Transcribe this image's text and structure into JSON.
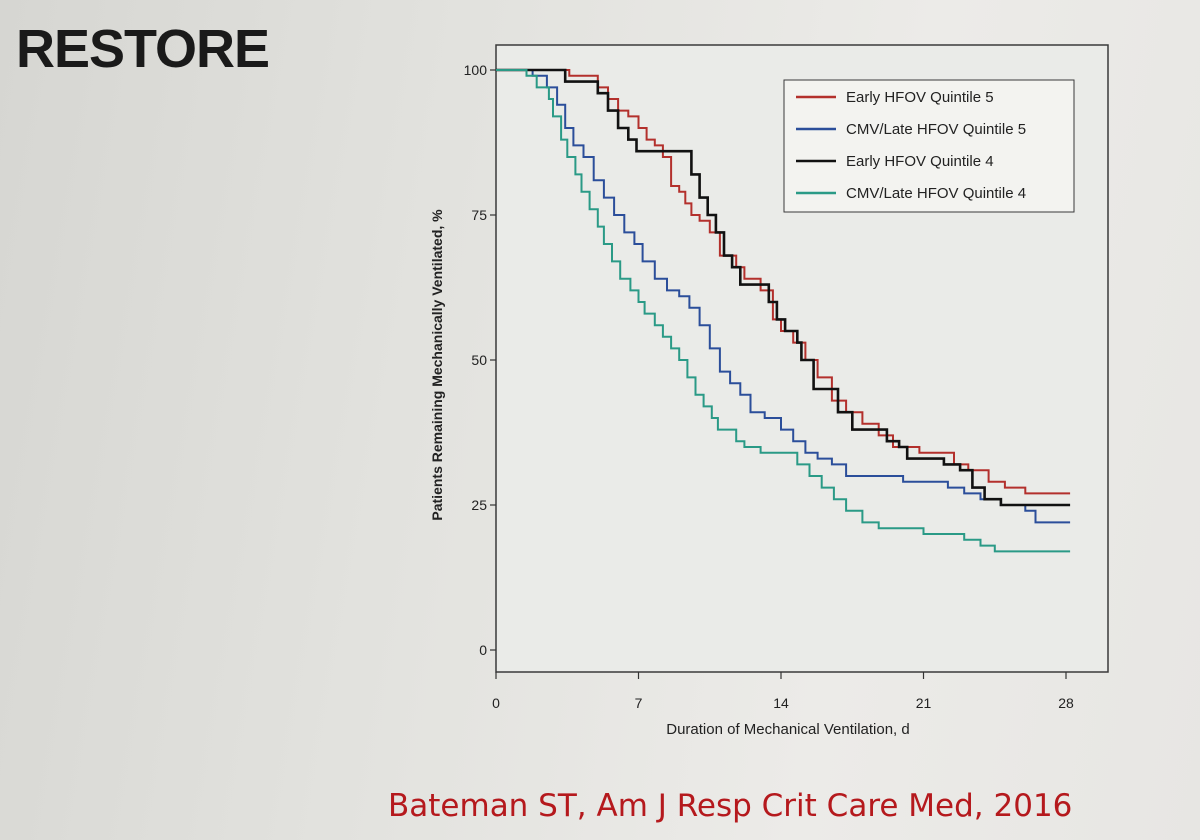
{
  "slide": {
    "title": "RESTORE",
    "citation": "Bateman ST, Am J Resp Crit Care Med, 2016"
  },
  "chart_data": {
    "type": "line",
    "step": true,
    "xlabel": "Duration of Mechanical Ventilation, d",
    "ylabel": "Patients Remaining Mechanically Ventilated, %",
    "xlim": [
      0,
      28
    ],
    "ylim": [
      0,
      100
    ],
    "x_ticks": [
      0,
      7,
      14,
      21,
      28
    ],
    "y_ticks": [
      0,
      25,
      50,
      75,
      100
    ],
    "grid": false,
    "legend_position": "top-right",
    "series": [
      {
        "name": "Early HFOV Quintile 5",
        "color": "#b3302c",
        "points": [
          [
            0,
            100
          ],
          [
            3.6,
            100
          ],
          [
            3.6,
            99
          ],
          [
            5,
            99
          ],
          [
            5,
            97
          ],
          [
            5.5,
            95
          ],
          [
            6,
            93
          ],
          [
            6.5,
            92
          ],
          [
            7,
            90
          ],
          [
            7.4,
            88
          ],
          [
            7.8,
            87
          ],
          [
            8.2,
            85
          ],
          [
            8.6,
            80
          ],
          [
            9,
            79
          ],
          [
            9.3,
            77
          ],
          [
            9.6,
            75
          ],
          [
            10,
            74
          ],
          [
            10.5,
            72
          ],
          [
            11,
            68
          ],
          [
            11.8,
            66
          ],
          [
            12.2,
            64
          ],
          [
            13,
            62
          ],
          [
            13.6,
            57
          ],
          [
            14,
            55
          ],
          [
            14.6,
            53
          ],
          [
            15.2,
            50
          ],
          [
            15.8,
            47
          ],
          [
            16.5,
            43
          ],
          [
            17.2,
            41
          ],
          [
            18,
            39
          ],
          [
            18.8,
            37
          ],
          [
            19.5,
            35
          ],
          [
            20.3,
            35
          ],
          [
            20.8,
            34
          ],
          [
            21.5,
            34
          ],
          [
            22.5,
            32
          ],
          [
            23.2,
            31
          ],
          [
            24.2,
            29
          ],
          [
            25,
            28
          ],
          [
            26,
            27
          ],
          [
            27.3,
            27
          ],
          [
            28.2,
            27
          ]
        ]
      },
      {
        "name": "CMV/Late HFOV Quintile 5",
        "color": "#2b4e9a",
        "points": [
          [
            0,
            100
          ],
          [
            1.2,
            100
          ],
          [
            1.8,
            99
          ],
          [
            2.5,
            97
          ],
          [
            3,
            94
          ],
          [
            3.4,
            90
          ],
          [
            3.8,
            87
          ],
          [
            4.3,
            85
          ],
          [
            4.8,
            81
          ],
          [
            5.3,
            78
          ],
          [
            5.8,
            75
          ],
          [
            6.3,
            72
          ],
          [
            6.8,
            70
          ],
          [
            7.2,
            67
          ],
          [
            7.8,
            64
          ],
          [
            8.4,
            62
          ],
          [
            9,
            61
          ],
          [
            9.5,
            59
          ],
          [
            10,
            56
          ],
          [
            10.5,
            52
          ],
          [
            11,
            48
          ],
          [
            11.5,
            46
          ],
          [
            12,
            44
          ],
          [
            12.5,
            41
          ],
          [
            13.2,
            40
          ],
          [
            14,
            38
          ],
          [
            14.6,
            36
          ],
          [
            15.2,
            34
          ],
          [
            15.8,
            33
          ],
          [
            16.5,
            32
          ],
          [
            17.2,
            30
          ],
          [
            18,
            30
          ],
          [
            19.5,
            30
          ],
          [
            20,
            29
          ],
          [
            21.5,
            29
          ],
          [
            22.2,
            28
          ],
          [
            23,
            27
          ],
          [
            23.8,
            26
          ],
          [
            24.8,
            25
          ],
          [
            26,
            24
          ],
          [
            26.5,
            22
          ],
          [
            28.2,
            22
          ]
        ]
      },
      {
        "name": "Early HFOV Quintile 4",
        "color": "#111111",
        "points": [
          [
            0,
            100
          ],
          [
            3.4,
            100
          ],
          [
            3.4,
            98
          ],
          [
            5,
            98
          ],
          [
            5,
            96
          ],
          [
            5.5,
            93
          ],
          [
            6,
            90
          ],
          [
            6.5,
            88
          ],
          [
            6.9,
            86
          ],
          [
            7.8,
            86
          ],
          [
            9.6,
            86
          ],
          [
            9.6,
            82
          ],
          [
            10,
            78
          ],
          [
            10.4,
            75
          ],
          [
            10.8,
            72
          ],
          [
            11.2,
            68
          ],
          [
            11.6,
            66
          ],
          [
            12,
            63
          ],
          [
            13,
            63
          ],
          [
            13.4,
            60
          ],
          [
            13.8,
            57
          ],
          [
            14.2,
            55
          ],
          [
            14.8,
            53
          ],
          [
            15,
            50
          ],
          [
            15.6,
            50
          ],
          [
            15.6,
            45
          ],
          [
            16.5,
            45
          ],
          [
            16.8,
            41
          ],
          [
            17.5,
            38
          ],
          [
            18.8,
            38
          ],
          [
            19.2,
            36
          ],
          [
            19.8,
            35
          ],
          [
            20.2,
            33
          ],
          [
            21.6,
            33
          ],
          [
            22,
            32
          ],
          [
            22.8,
            31
          ],
          [
            23.4,
            28
          ],
          [
            24,
            26
          ],
          [
            24.8,
            25
          ],
          [
            28.2,
            25
          ]
        ]
      },
      {
        "name": "CMV/Late HFOV Quintile 4",
        "color": "#2a9a86",
        "points": [
          [
            0,
            100
          ],
          [
            1,
            100
          ],
          [
            1.5,
            99
          ],
          [
            2,
            97
          ],
          [
            2.6,
            95
          ],
          [
            2.8,
            92
          ],
          [
            3.2,
            88
          ],
          [
            3.5,
            85
          ],
          [
            3.9,
            82
          ],
          [
            4.2,
            79
          ],
          [
            4.6,
            76
          ],
          [
            5,
            73
          ],
          [
            5.3,
            70
          ],
          [
            5.7,
            67
          ],
          [
            6.1,
            64
          ],
          [
            6.6,
            62
          ],
          [
            7,
            60
          ],
          [
            7.3,
            58
          ],
          [
            7.8,
            56
          ],
          [
            8.2,
            54
          ],
          [
            8.6,
            52
          ],
          [
            9,
            50
          ],
          [
            9.4,
            47
          ],
          [
            9.8,
            44
          ],
          [
            10.2,
            42
          ],
          [
            10.6,
            40
          ],
          [
            10.9,
            38
          ],
          [
            11.5,
            38
          ],
          [
            11.8,
            36
          ],
          [
            12.2,
            35
          ],
          [
            13,
            34
          ],
          [
            14.2,
            34
          ],
          [
            14.8,
            32
          ],
          [
            15.4,
            30
          ],
          [
            16,
            28
          ],
          [
            16.6,
            26
          ],
          [
            17.2,
            24
          ],
          [
            18,
            22
          ],
          [
            18.8,
            21
          ],
          [
            20,
            21
          ],
          [
            21,
            20
          ],
          [
            22.5,
            20
          ],
          [
            23,
            19
          ],
          [
            23.8,
            18
          ],
          [
            24.5,
            17
          ],
          [
            26,
            17
          ],
          [
            28.2,
            17
          ]
        ]
      }
    ]
  }
}
